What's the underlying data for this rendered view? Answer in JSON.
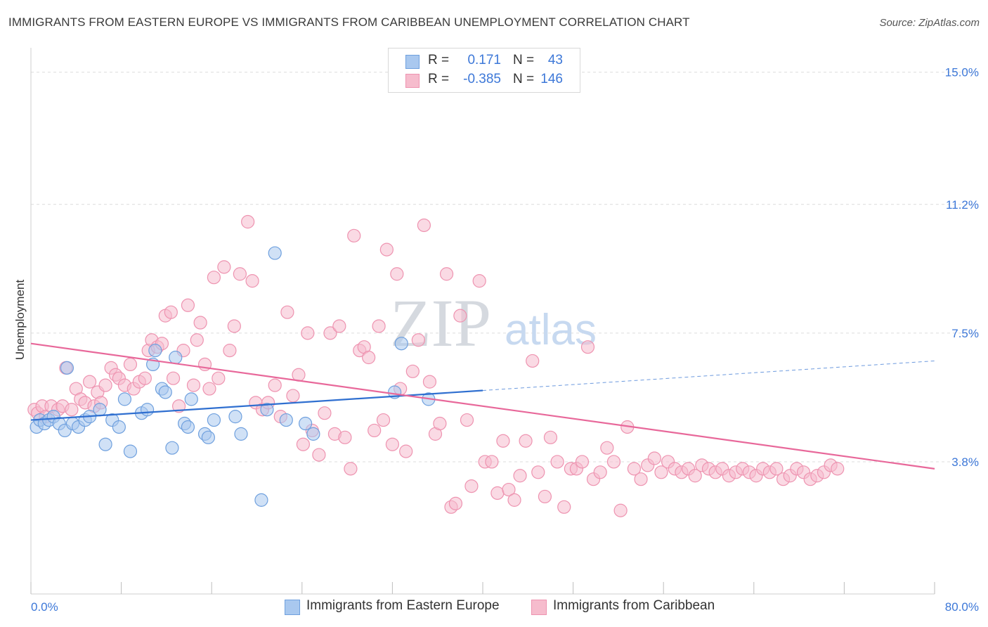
{
  "title": "IMMIGRANTS FROM EASTERN EUROPE VS IMMIGRANTS FROM CARIBBEAN UNEMPLOYMENT CORRELATION CHART",
  "source": "Source: ZipAtlas.com",
  "watermark": {
    "zip": "ZIP",
    "atlas": "atlas"
  },
  "colors": {
    "blue_fill": "#a9c8ef",
    "blue_stroke": "#6fa0de",
    "blue_line": "#2f6fd0",
    "pink_fill": "#f6bccd",
    "pink_stroke": "#ee93b0",
    "pink_line": "#e8689a",
    "tick_text": "#3d78d8",
    "grid": "#dcdcdc"
  },
  "stats": [
    {
      "r_label": "R =",
      "r_value": "0.171",
      "n_label": "N =",
      "n_value": "43"
    },
    {
      "r_label": "R =",
      "r_value": "-0.385",
      "n_label": "N =",
      "n_value": "146"
    }
  ],
  "legend": [
    "Immigrants from Eastern Europe",
    "Immigrants from Caribbean"
  ],
  "chart_data": {
    "type": "scatter",
    "title": "IMMIGRANTS FROM EASTERN EUROPE VS IMMIGRANTS FROM CARIBBEAN UNEMPLOYMENT CORRELATION CHART",
    "xlabel": "",
    "ylabel": "Unemployment",
    "xlim": [
      0,
      80
    ],
    "ylim": [
      0,
      15.5
    ],
    "x_tick_labels": [
      "0.0%",
      "80.0%"
    ],
    "y_ticks": [
      3.8,
      7.5,
      11.2,
      15.0
    ],
    "y_tick_labels": [
      "3.8%",
      "7.5%",
      "11.2%",
      "15.0%"
    ],
    "grid": "horizontal dashed",
    "series": [
      {
        "name": "Immigrants from Eastern Europe",
        "r": 0.171,
        "n": 43,
        "trend": {
          "x0": 0,
          "y0": 5.0,
          "x1": 40,
          "y1": 5.85,
          "dashed_to_x": 80,
          "dashed_to_y": 6.7
        },
        "points": [
          [
            0.5,
            4.8
          ],
          [
            0.8,
            5.0
          ],
          [
            1.2,
            4.9
          ],
          [
            1.6,
            5.0
          ],
          [
            2,
            5.1
          ],
          [
            2.5,
            4.9
          ],
          [
            3,
            4.7
          ],
          [
            3.2,
            6.5
          ],
          [
            3.7,
            4.9
          ],
          [
            4.2,
            4.8
          ],
          [
            4.8,
            5.0
          ],
          [
            5.2,
            5.1
          ],
          [
            6.1,
            5.3
          ],
          [
            6.6,
            4.3
          ],
          [
            7.2,
            5.0
          ],
          [
            7.8,
            4.8
          ],
          [
            8.3,
            5.6
          ],
          [
            8.8,
            4.1
          ],
          [
            9.8,
            5.2
          ],
          [
            10.3,
            5.3
          ],
          [
            10.8,
            6.6
          ],
          [
            11,
            7.0
          ],
          [
            11.6,
            5.9
          ],
          [
            11.9,
            5.8
          ],
          [
            12.5,
            4.2
          ],
          [
            12.8,
            6.8
          ],
          [
            13.6,
            4.9
          ],
          [
            13.9,
            4.8
          ],
          [
            14.2,
            5.6
          ],
          [
            15.4,
            4.6
          ],
          [
            15.7,
            4.5
          ],
          [
            16.2,
            5.0
          ],
          [
            18.1,
            5.1
          ],
          [
            18.6,
            4.6
          ],
          [
            20.4,
            2.7
          ],
          [
            20.9,
            5.3
          ],
          [
            21.6,
            9.8
          ],
          [
            22.6,
            5.0
          ],
          [
            24.3,
            4.9
          ],
          [
            25,
            4.6
          ],
          [
            32.2,
            5.8
          ],
          [
            32.8,
            7.2
          ],
          [
            35.2,
            5.6
          ]
        ]
      },
      {
        "name": "Immigrants from Caribbean",
        "r": -0.385,
        "n": 146,
        "trend": {
          "x0": 0,
          "y0": 7.2,
          "x1": 80,
          "y1": 3.6
        },
        "points": [
          [
            0.3,
            5.3
          ],
          [
            0.6,
            5.2
          ],
          [
            1,
            5.4
          ],
          [
            1.3,
            5.1
          ],
          [
            1.8,
            5.4
          ],
          [
            2.4,
            5.3
          ],
          [
            2.8,
            5.4
          ],
          [
            3.1,
            6.5
          ],
          [
            3.6,
            5.3
          ],
          [
            4,
            5.9
          ],
          [
            4.4,
            5.6
          ],
          [
            4.8,
            5.5
          ],
          [
            5.2,
            6.1
          ],
          [
            5.6,
            5.4
          ],
          [
            5.9,
            5.8
          ],
          [
            6.2,
            5.5
          ],
          [
            6.6,
            6.0
          ],
          [
            7.1,
            6.5
          ],
          [
            7.5,
            6.3
          ],
          [
            7.8,
            6.2
          ],
          [
            8.3,
            6.0
          ],
          [
            8.8,
            6.6
          ],
          [
            9.1,
            5.9
          ],
          [
            9.6,
            6.1
          ],
          [
            10.1,
            6.2
          ],
          [
            10.4,
            7.0
          ],
          [
            10.7,
            7.3
          ],
          [
            11.2,
            7.1
          ],
          [
            11.6,
            7.2
          ],
          [
            11.9,
            8.0
          ],
          [
            12.4,
            8.1
          ],
          [
            12.6,
            6.2
          ],
          [
            13.1,
            5.4
          ],
          [
            13.5,
            7.0
          ],
          [
            13.9,
            8.3
          ],
          [
            14.4,
            6.0
          ],
          [
            14.7,
            7.3
          ],
          [
            15,
            7.8
          ],
          [
            15.4,
            6.6
          ],
          [
            15.8,
            5.9
          ],
          [
            16.2,
            9.1
          ],
          [
            16.6,
            6.2
          ],
          [
            17.1,
            9.4
          ],
          [
            17.6,
            7.0
          ],
          [
            18,
            7.7
          ],
          [
            18.5,
            9.2
          ],
          [
            19.2,
            10.7
          ],
          [
            19.6,
            9.0
          ],
          [
            19.9,
            5.5
          ],
          [
            20.5,
            5.3
          ],
          [
            21,
            5.5
          ],
          [
            21.6,
            6.0
          ],
          [
            22.1,
            5.1
          ],
          [
            22.7,
            8.1
          ],
          [
            23.2,
            5.7
          ],
          [
            23.7,
            6.3
          ],
          [
            24.1,
            4.3
          ],
          [
            24.5,
            7.5
          ],
          [
            24.9,
            4.7
          ],
          [
            25.5,
            4.0
          ],
          [
            26,
            5.2
          ],
          [
            26.5,
            7.5
          ],
          [
            26.9,
            4.6
          ],
          [
            27.3,
            7.7
          ],
          [
            27.8,
            4.5
          ],
          [
            28.3,
            3.6
          ],
          [
            28.6,
            10.3
          ],
          [
            29.1,
            7.0
          ],
          [
            29.5,
            7.1
          ],
          [
            29.9,
            6.8
          ],
          [
            30.4,
            4.7
          ],
          [
            30.8,
            7.7
          ],
          [
            31.2,
            5.0
          ],
          [
            31.5,
            9.9
          ],
          [
            32,
            4.3
          ],
          [
            32.4,
            9.2
          ],
          [
            32.7,
            5.9
          ],
          [
            33.2,
            4.1
          ],
          [
            33.8,
            6.4
          ],
          [
            34.3,
            7.3
          ],
          [
            34.8,
            10.6
          ],
          [
            35.3,
            6.1
          ],
          [
            35.8,
            4.6
          ],
          [
            36.2,
            4.9
          ],
          [
            36.8,
            9.2
          ],
          [
            37.2,
            2.5
          ],
          [
            37.6,
            2.6
          ],
          [
            38,
            8.0
          ],
          [
            38.6,
            5.0
          ],
          [
            39,
            3.1
          ],
          [
            39.7,
            9.0
          ],
          [
            40.2,
            3.8
          ],
          [
            40.8,
            3.8
          ],
          [
            41.3,
            2.9
          ],
          [
            41.8,
            4.4
          ],
          [
            42.3,
            3.0
          ],
          [
            42.8,
            2.7
          ],
          [
            43.3,
            3.4
          ],
          [
            43.8,
            4.4
          ],
          [
            44.4,
            6.7
          ],
          [
            44.9,
            3.5
          ],
          [
            45.5,
            2.8
          ],
          [
            46,
            4.5
          ],
          [
            46.6,
            3.8
          ],
          [
            47.2,
            2.5
          ],
          [
            47.8,
            3.6
          ],
          [
            48.3,
            3.6
          ],
          [
            48.8,
            3.8
          ],
          [
            49.3,
            7.1
          ],
          [
            49.8,
            3.3
          ],
          [
            50.4,
            3.5
          ],
          [
            51,
            4.2
          ],
          [
            51.6,
            3.8
          ],
          [
            52.2,
            2.4
          ],
          [
            52.8,
            4.8
          ],
          [
            53.4,
            3.6
          ],
          [
            54,
            3.3
          ],
          [
            54.6,
            3.7
          ],
          [
            55.2,
            3.9
          ],
          [
            55.8,
            3.5
          ],
          [
            56.4,
            3.8
          ],
          [
            57,
            3.6
          ],
          [
            57.6,
            3.5
          ],
          [
            58.2,
            3.6
          ],
          [
            58.8,
            3.4
          ],
          [
            59.4,
            3.7
          ],
          [
            60,
            3.6
          ],
          [
            60.6,
            3.5
          ],
          [
            61.2,
            3.6
          ],
          [
            61.8,
            3.4
          ],
          [
            62.4,
            3.5
          ],
          [
            63,
            3.6
          ],
          [
            63.6,
            3.5
          ],
          [
            64.2,
            3.4
          ],
          [
            64.8,
            3.6
          ],
          [
            65.4,
            3.5
          ],
          [
            66,
            3.6
          ],
          [
            66.6,
            3.3
          ],
          [
            67.2,
            3.4
          ],
          [
            67.8,
            3.6
          ],
          [
            68.4,
            3.5
          ],
          [
            69,
            3.3
          ],
          [
            69.6,
            3.4
          ],
          [
            70.2,
            3.5
          ],
          [
            70.8,
            3.7
          ],
          [
            71.4,
            3.6
          ]
        ]
      }
    ]
  }
}
